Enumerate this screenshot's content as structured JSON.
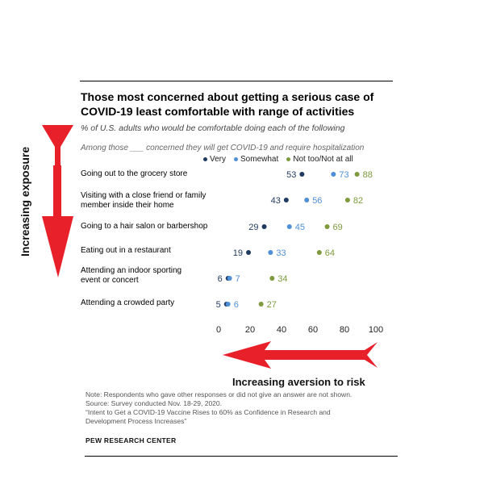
{
  "chart_data": {
    "type": "dot",
    "title": "Those most concerned about getting a serious case of COVID-19  least comfortable with range of activities",
    "subtitle": "% of U.S. adults who would be comfortable doing each of the following",
    "group_note": "Among those ___ concerned they will get COVID-19 and require hospitalization",
    "categories": [
      "Going out to the grocery store",
      "Visiting with a close friend or family member inside their home",
      "Going to a hair salon or barbershop",
      "Eating out in a restaurant",
      "Attending an indoor sporting event or concert",
      "Attending a crowded party"
    ],
    "series": [
      {
        "name": "Very",
        "color": "#1f3a5f",
        "values": [
          53,
          43,
          29,
          19,
          6,
          5
        ]
      },
      {
        "name": "Somewhat",
        "color": "#4f8fd6",
        "values": [
          73,
          56,
          45,
          33,
          7,
          6
        ]
      },
      {
        "name": "Not too/Not at all",
        "color": "#7d9a3c",
        "values": [
          88,
          82,
          69,
          64,
          34,
          27
        ]
      }
    ],
    "xlim": [
      0,
      100
    ],
    "xticks": [
      0,
      20,
      40,
      60,
      80,
      100
    ],
    "legend_position": "top"
  },
  "labels": {
    "row_0": "Going out to the grocery store",
    "row_1": "Visiting with a close friend or family member inside their home",
    "row_2": "Going to a hair salon or barbershop",
    "row_3": "Eating out in a restaurant",
    "row_4": "Attending an indoor sporting event or concert",
    "row_5": "Attending a crowded party"
  },
  "legend": {
    "very": "Very",
    "somewhat": "Somewhat",
    "not_too": "Not too/Not at all"
  },
  "annotations": {
    "vertical": "Increasing exposure",
    "horizontal": "Increasing aversion to risk"
  },
  "footer": {
    "note": "Note: Respondents who gave other responses or did not give an answer are not shown.",
    "source": "Source: Survey conducted Nov. 18-29, 2020.",
    "report_line1": "“Intent to Get a COVID-19 Vaccine Rises to 60% as Confidence in Research and",
    "report_line2": "Development Process Increases”",
    "brand": "PEW RESEARCH CENTER"
  },
  "colors": {
    "very": "#1f3a5f",
    "somewhat": "#4f8fd6",
    "not_too": "#7d9a3c",
    "arrow": "#e8202a"
  }
}
